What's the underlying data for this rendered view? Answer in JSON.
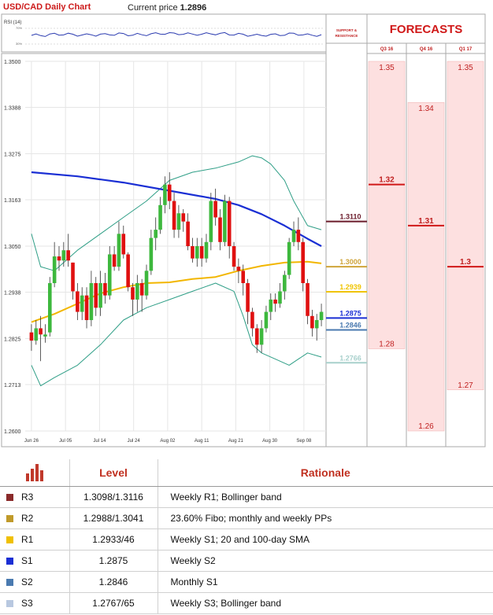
{
  "header": {
    "title": "USD/CAD Daily Chart",
    "price_label": "Current price",
    "price_value": "1.2896"
  },
  "rsi": {
    "label": "RSI (14)",
    "tick_hi": "70%",
    "tick_lo": "30%"
  },
  "colors": {
    "up_candle": "#3db83d",
    "down_candle": "#e01010",
    "sma200": "#1a2fd4",
    "sma100": "#f2b600",
    "boll": "#2e9e86",
    "forecast_fill": "#fde0e0",
    "forecast_line": "#d01818"
  },
  "chart_data": [
    {
      "type": "candlestick",
      "title": "USD/CAD Daily Chart",
      "ylim": [
        1.26,
        1.35
      ],
      "y_ticks": [
        "1.3500",
        "1.3388",
        "1.3275",
        "1.3163",
        "1.3050",
        "1.2938",
        "1.2825",
        "1.2713",
        "1.2600"
      ],
      "x_ticks": [
        "Jun 26",
        "Jul 05",
        "Jul 14",
        "Jul 24",
        "Aug 02",
        "Aug 11",
        "Aug 21",
        "Aug 30",
        "Sep 08"
      ],
      "candles": [
        [
          1.284,
          1.282,
          1.286,
          1.2795
        ],
        [
          1.282,
          1.285,
          1.287,
          1.281
        ],
        [
          1.285,
          1.2835,
          1.288,
          1.277
        ],
        [
          1.283,
          1.2835,
          1.286,
          1.2815
        ],
        [
          1.284,
          1.296,
          1.2975,
          1.283
        ],
        [
          1.296,
          1.3025,
          1.306,
          1.295
        ],
        [
          1.3025,
          1.3015,
          1.305,
          1.299
        ],
        [
          1.3015,
          1.304,
          1.306,
          1.3
        ],
        [
          1.304,
          1.3015,
          1.308,
          1.3
        ],
        [
          1.301,
          1.294,
          1.301,
          1.292
        ],
        [
          1.294,
          1.289,
          1.296,
          1.287
        ],
        [
          1.289,
          1.293,
          1.295,
          1.287
        ],
        [
          1.293,
          1.287,
          1.295,
          1.285
        ],
        [
          1.287,
          1.296,
          1.299,
          1.2855
        ],
        [
          1.296,
          1.29,
          1.2975,
          1.288
        ],
        [
          1.29,
          1.296,
          1.299,
          1.288
        ],
        [
          1.296,
          1.293,
          1.2985,
          1.291
        ],
        [
          1.293,
          1.303,
          1.305,
          1.292
        ],
        [
          1.303,
          1.3,
          1.305,
          1.299
        ],
        [
          1.3,
          1.308,
          1.311,
          1.299
        ],
        [
          1.308,
          1.303,
          1.31,
          1.302
        ],
        [
          1.303,
          1.295,
          1.3035,
          1.294
        ],
        [
          1.295,
          1.292,
          1.296,
          1.288
        ],
        [
          1.292,
          1.296,
          1.298,
          1.289
        ],
        [
          1.296,
          1.293,
          1.297,
          1.289
        ],
        [
          1.293,
          1.299,
          1.3005,
          1.292
        ],
        [
          1.299,
          1.307,
          1.309,
          1.298
        ],
        [
          1.307,
          1.309,
          1.312,
          1.304
        ],
        [
          1.309,
          1.315,
          1.317,
          1.308
        ],
        [
          1.315,
          1.32,
          1.322,
          1.313
        ],
        [
          1.32,
          1.316,
          1.323,
          1.314
        ],
        [
          1.316,
          1.309,
          1.318,
          1.307
        ],
        [
          1.309,
          1.313,
          1.315,
          1.307
        ],
        [
          1.313,
          1.311,
          1.314,
          1.3085
        ],
        [
          1.311,
          1.305,
          1.313,
          1.304
        ],
        [
          1.305,
          1.302,
          1.307,
          1.301
        ],
        [
          1.302,
          1.305,
          1.307,
          1.3
        ],
        [
          1.305,
          1.302,
          1.307,
          1.3
        ],
        [
          1.302,
          1.306,
          1.308,
          1.301
        ],
        [
          1.306,
          1.316,
          1.318,
          1.304
        ],
        [
          1.316,
          1.312,
          1.319,
          1.31
        ],
        [
          1.312,
          1.306,
          1.314,
          1.304
        ],
        [
          1.306,
          1.316,
          1.3175,
          1.305
        ],
        [
          1.316,
          1.305,
          1.317,
          1.302
        ],
        [
          1.305,
          1.3,
          1.306,
          1.299
        ],
        [
          1.3,
          1.299,
          1.302,
          1.296
        ],
        [
          1.299,
          1.296,
          1.3005,
          1.293
        ],
        [
          1.296,
          1.289,
          1.297,
          1.286
        ],
        [
          1.289,
          1.285,
          1.29,
          1.283
        ],
        [
          1.285,
          1.281,
          1.286,
          1.279
        ],
        [
          1.281,
          1.285,
          1.287,
          1.279
        ],
        [
          1.285,
          1.289,
          1.2905,
          1.284
        ],
        [
          1.289,
          1.292,
          1.2935,
          1.287
        ],
        [
          1.292,
          1.291,
          1.2935,
          1.289
        ],
        [
          1.291,
          1.294,
          1.296,
          1.29
        ],
        [
          1.294,
          1.298,
          1.299,
          1.292
        ],
        [
          1.298,
          1.306,
          1.307,
          1.297
        ],
        [
          1.306,
          1.309,
          1.311,
          1.305
        ],
        [
          1.309,
          1.306,
          1.312,
          1.304
        ],
        [
          1.306,
          1.296,
          1.307,
          1.294
        ],
        [
          1.296,
          1.288,
          1.297,
          1.286
        ],
        [
          1.288,
          1.285,
          1.2895,
          1.283
        ],
        [
          1.285,
          1.287,
          1.2885,
          1.282
        ],
        [
          1.287,
          1.289,
          1.291,
          1.2855
        ]
      ],
      "sma200": [
        [
          0,
          1.323
        ],
        [
          10,
          1.322
        ],
        [
          20,
          1.3205
        ],
        [
          30,
          1.3185
        ],
        [
          40,
          1.3165
        ],
        [
          45,
          1.315
        ],
        [
          50,
          1.3128
        ],
        [
          55,
          1.31
        ],
        [
          60,
          1.3068
        ],
        [
          63,
          1.305
        ]
      ],
      "sma100": [
        [
          0,
          1.2865
        ],
        [
          5,
          1.2885
        ],
        [
          10,
          1.291
        ],
        [
          15,
          1.2935
        ],
        [
          20,
          1.295
        ],
        [
          25,
          1.296
        ],
        [
          30,
          1.2962
        ],
        [
          35,
          1.297
        ],
        [
          40,
          1.2975
        ],
        [
          45,
          1.299
        ],
        [
          50,
          1.3002
        ],
        [
          55,
          1.301
        ],
        [
          60,
          1.3012
        ],
        [
          63,
          1.3008
        ]
      ],
      "bollinger_upper": [
        [
          0,
          1.308
        ],
        [
          2,
          1.3
        ],
        [
          5,
          1.299
        ],
        [
          10,
          1.304
        ],
        [
          15,
          1.308
        ],
        [
          20,
          1.312
        ],
        [
          25,
          1.316
        ],
        [
          30,
          1.321
        ],
        [
          35,
          1.323
        ],
        [
          40,
          1.324
        ],
        [
          45,
          1.3255
        ],
        [
          48,
          1.327
        ],
        [
          50,
          1.3265
        ],
        [
          52,
          1.325
        ],
        [
          55,
          1.321
        ],
        [
          57,
          1.316
        ],
        [
          60,
          1.31
        ],
        [
          63,
          1.309
        ]
      ],
      "bollinger_lower": [
        [
          0,
          1.276
        ],
        [
          2,
          1.271
        ],
        [
          5,
          1.273
        ],
        [
          10,
          1.276
        ],
        [
          15,
          1.281
        ],
        [
          20,
          1.287
        ],
        [
          25,
          1.29
        ],
        [
          30,
          1.292
        ],
        [
          35,
          1.294
        ],
        [
          40,
          1.296
        ],
        [
          44,
          1.294
        ],
        [
          46,
          1.288
        ],
        [
          48,
          1.281
        ],
        [
          50,
          1.279
        ],
        [
          53,
          1.2775
        ],
        [
          56,
          1.276
        ],
        [
          58,
          1.2775
        ],
        [
          60,
          1.279
        ],
        [
          63,
          1.278
        ]
      ],
      "lower_band_label": "1.2766"
    },
    {
      "type": "table",
      "title": "Support & Resistance",
      "header": "SUPPORT & RESISTANCE",
      "levels": [
        {
          "value": 1.311,
          "label": "1.3110",
          "color": "#6a1a2a"
        },
        {
          "value": 1.3,
          "label": "1.3000",
          "color": "#cfa43a"
        },
        {
          "value": 1.2939,
          "label": "1.2939",
          "color": "#f0c400"
        },
        {
          "value": 1.2875,
          "label": "1.2875",
          "color": "#1a2fd4"
        },
        {
          "value": 1.2846,
          "label": "1.2846",
          "color": "#4a7ab0"
        },
        {
          "value": 1.2766,
          "label": "1.2766",
          "color": "#a8d0cc"
        }
      ]
    },
    {
      "type": "bar",
      "title": "FORECASTS",
      "categories": [
        "Q3 16",
        "Q4 16",
        "Q1 17"
      ],
      "series": [
        {
          "values": [
            1.35,
            1.34,
            1.35
          ]
        },
        {
          "values": [
            1.32,
            1.31,
            1.3
          ]
        },
        {
          "values": [
            1.28,
            1.26,
            1.27
          ]
        }
      ],
      "value_labels": [
        [
          "1.35",
          "1.32",
          "1.28"
        ],
        [
          "1.34",
          "1.31",
          "1.26"
        ],
        [
          "1.35",
          "1.3",
          "1.27"
        ]
      ]
    }
  ],
  "table": {
    "col_level": "Level",
    "col_rationale": "Rationale",
    "rows": [
      {
        "name": "R3",
        "level": "1.3098/1.3116",
        "rationale": "Weekly R1; Bollinger band",
        "color": "#8a2a2a"
      },
      {
        "name": "R2",
        "level": "1.2988/1.3041",
        "rationale": "23.60% Fibo; monthly and weekly PPs",
        "color": "#c09a2a"
      },
      {
        "name": "R1",
        "level": "1.2933/46",
        "rationale": "Weekly S1; 20 and 100-day SMA",
        "color": "#f0c000"
      },
      {
        "name": "S1",
        "level": "1.2875",
        "rationale": "Weekly S2",
        "color": "#1a2fd4"
      },
      {
        "name": "S2",
        "level": "1.2846",
        "rationale": "Monthly S1",
        "color": "#4a7ab0"
      },
      {
        "name": "S3",
        "level": "1.2767/65",
        "rationale": "Weekly S3; Bollinger band",
        "color": "#b8c8e0"
      }
    ]
  }
}
